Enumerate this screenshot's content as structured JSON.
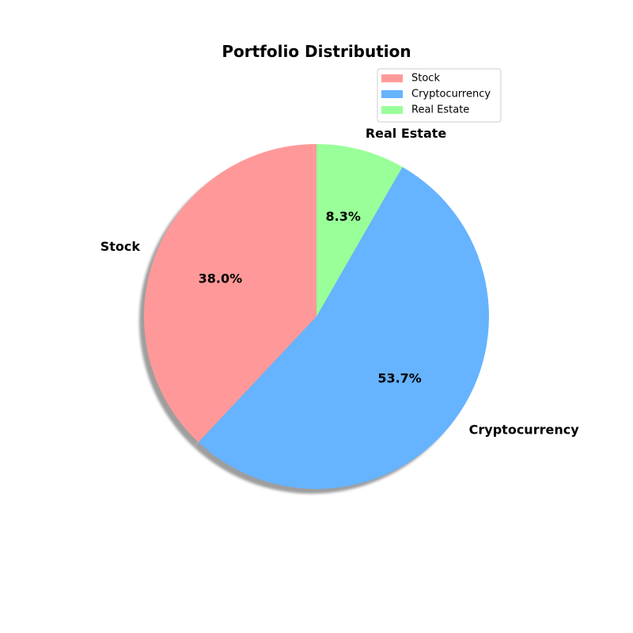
{
  "chart_data": {
    "type": "pie",
    "title": "Portfolio Distribution",
    "categories": [
      "Stock",
      "Cryptocurrency",
      "Real Estate"
    ],
    "values": [
      38.0,
      53.7,
      8.3
    ],
    "percent_labels": [
      "38.0%",
      "53.7%",
      "8.3%"
    ],
    "colors": [
      "#ff9999",
      "#66b3ff",
      "#99ff99"
    ],
    "start_angle_deg": 90,
    "direction": "counterclockwise",
    "shadow": true,
    "legend": {
      "placement": "top-right",
      "entries": [
        "Stock",
        "Cryptocurrency",
        "Real Estate"
      ]
    }
  }
}
